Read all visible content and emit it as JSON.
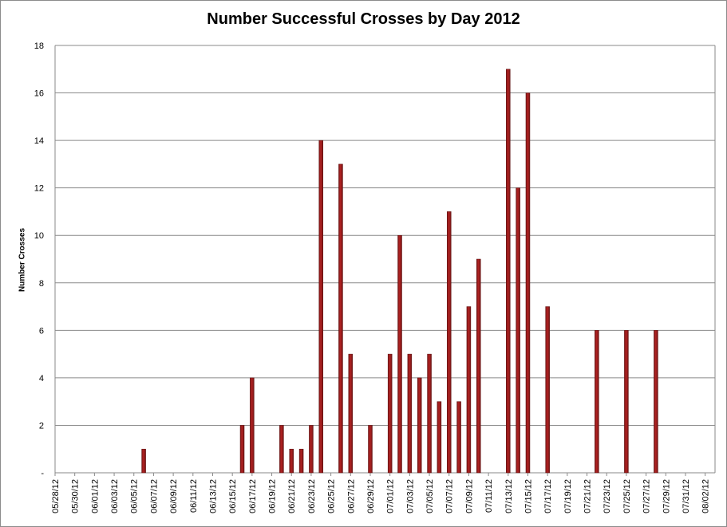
{
  "chart_data": {
    "type": "bar",
    "title": "Number Successful Crosses by Day 2012",
    "xlabel": "",
    "ylabel": "Number Crosses",
    "ylim": [
      0,
      18
    ],
    "y_ticks": [
      0,
      2,
      4,
      6,
      8,
      10,
      12,
      14,
      16,
      18
    ],
    "y_tick_labels": [
      "-",
      "2",
      "4",
      "6",
      "8",
      "10",
      "12",
      "14",
      "16",
      "18"
    ],
    "grid": true,
    "legend": "none",
    "bar_color": "#B22222",
    "x_tick_labels": [
      "05/28/12",
      "05/30/12",
      "06/01/12",
      "06/03/12",
      "06/05/12",
      "06/07/12",
      "06/09/12",
      "06/11/12",
      "06/13/12",
      "06/15/12",
      "06/17/12",
      "06/19/12",
      "06/21/12",
      "06/23/12",
      "06/25/12",
      "06/27/12",
      "06/29/12",
      "07/01/12",
      "07/03/12",
      "07/05/12",
      "07/07/12",
      "07/09/12",
      "07/11/12",
      "07/13/12",
      "07/15/12",
      "07/17/12",
      "07/19/12",
      "07/21/12",
      "07/23/12",
      "07/25/12",
      "07/27/12",
      "07/29/12",
      "07/31/12",
      "08/02/12"
    ],
    "x_range": [
      "05/28/12",
      "08/03/12"
    ],
    "points": [
      {
        "x": "06/06/12",
        "y": 1
      },
      {
        "x": "06/16/12",
        "y": 2
      },
      {
        "x": "06/17/12",
        "y": 4
      },
      {
        "x": "06/20/12",
        "y": 2
      },
      {
        "x": "06/21/12",
        "y": 1
      },
      {
        "x": "06/22/12",
        "y": 1
      },
      {
        "x": "06/23/12",
        "y": 2
      },
      {
        "x": "06/24/12",
        "y": 14
      },
      {
        "x": "06/26/12",
        "y": 13
      },
      {
        "x": "06/27/12",
        "y": 5
      },
      {
        "x": "06/29/12",
        "y": 2
      },
      {
        "x": "07/01/12",
        "y": 5
      },
      {
        "x": "07/02/12",
        "y": 10
      },
      {
        "x": "07/03/12",
        "y": 5
      },
      {
        "x": "07/04/12",
        "y": 4
      },
      {
        "x": "07/05/12",
        "y": 5
      },
      {
        "x": "07/06/12",
        "y": 3
      },
      {
        "x": "07/07/12",
        "y": 11
      },
      {
        "x": "07/08/12",
        "y": 3
      },
      {
        "x": "07/09/12",
        "y": 7
      },
      {
        "x": "07/10/12",
        "y": 9
      },
      {
        "x": "07/13/12",
        "y": 17
      },
      {
        "x": "07/14/12",
        "y": 12
      },
      {
        "x": "07/15/12",
        "y": 16
      },
      {
        "x": "07/17/12",
        "y": 7
      },
      {
        "x": "07/22/12",
        "y": 6
      },
      {
        "x": "07/25/12",
        "y": 6
      },
      {
        "x": "07/28/12",
        "y": 6
      }
    ]
  }
}
